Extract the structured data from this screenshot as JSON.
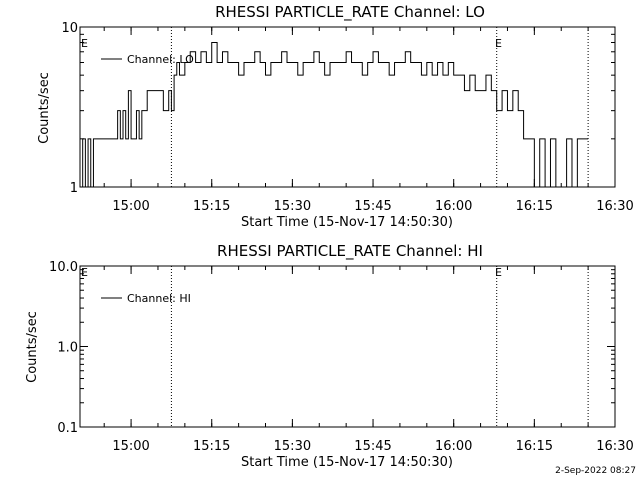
{
  "footer": {
    "date": "2-Sep-2022 08:27"
  },
  "chart_data": [
    {
      "type": "line",
      "title": "RHESSI PARTICLE_RATE Channel: LO",
      "xlabel": "Start Time (15-Nov-17 14:50:30)",
      "ylabel": "Counts/sec",
      "y_scale": "log",
      "ylim": [
        1,
        10
      ],
      "yticks": [
        "1",
        "10"
      ],
      "xlim": [
        "14:50:30",
        "16:30:00"
      ],
      "xticks": [
        "15:00",
        "15:15",
        "15:30",
        "15:45",
        "16:00",
        "16:15",
        "16:30"
      ],
      "grid": false,
      "legend_position": "top-left",
      "vlines": [
        "15:07:30",
        "16:08:00",
        "16:25:00"
      ],
      "markers": [
        "E",
        "E"
      ],
      "series": [
        {
          "name": "Channel: LO",
          "x": [
            "14:50:30",
            "14:51:00",
            "14:51:30",
            "14:52:00",
            "14:52:30",
            "14:53:00",
            "14:54:00",
            "14:55:00",
            "14:56:00",
            "14:57:00",
            "14:57:30",
            "14:58:00",
            "14:58:30",
            "14:59:00",
            "14:59:30",
            "15:00:00",
            "15:01:00",
            "15:01:30",
            "15:02:00",
            "15:02:30",
            "15:03:00",
            "15:04:00",
            "15:05:00",
            "15:06:00",
            "15:07:00",
            "15:07:30",
            "15:08:00",
            "15:08:30",
            "15:09:00",
            "15:10:00",
            "15:11:00",
            "15:12:00",
            "15:13:00",
            "15:14:00",
            "15:15:00",
            "15:16:00",
            "15:17:00",
            "15:18:00",
            "15:19:00",
            "15:20:00",
            "15:21:00",
            "15:22:00",
            "15:23:00",
            "15:24:00",
            "15:25:00",
            "15:26:00",
            "15:27:00",
            "15:28:00",
            "15:29:00",
            "15:30:00",
            "15:31:00",
            "15:32:00",
            "15:33:00",
            "15:34:00",
            "15:35:00",
            "15:36:00",
            "15:37:00",
            "15:38:00",
            "15:39:00",
            "15:40:00",
            "15:41:00",
            "15:42:00",
            "15:43:00",
            "15:44:00",
            "15:45:00",
            "15:46:00",
            "15:47:00",
            "15:48:00",
            "15:49:00",
            "15:50:00",
            "15:51:00",
            "15:52:00",
            "15:53:00",
            "15:54:00",
            "15:55:00",
            "15:56:00",
            "15:57:00",
            "15:58:00",
            "15:59:00",
            "16:00:00",
            "16:01:00",
            "16:02:00",
            "16:03:00",
            "16:04:00",
            "16:05:00",
            "16:06:00",
            "16:07:00",
            "16:08:00",
            "16:09:00",
            "16:10:00",
            "16:11:00",
            "16:12:00",
            "16:13:00",
            "16:14:00",
            "16:15:00",
            "16:16:00",
            "16:17:00",
            "16:18:00",
            "16:19:00",
            "16:20:00",
            "16:21:00",
            "16:22:00",
            "16:23:00",
            "16:24:00",
            "16:25:00"
          ],
          "values": [
            1,
            2,
            1,
            2,
            1,
            2,
            2,
            2,
            2,
            2,
            3,
            2,
            3,
            2,
            4,
            2,
            3,
            2,
            3,
            3,
            4,
            4,
            4,
            3,
            4,
            3,
            5,
            6,
            5,
            6,
            7,
            6,
            7,
            6,
            8,
            6,
            7,
            6,
            6,
            5,
            6,
            6,
            7,
            6,
            5,
            6,
            6,
            7,
            6,
            6,
            5,
            6,
            6,
            7,
            6,
            5,
            6,
            6,
            6,
            7,
            6,
            6,
            5,
            6,
            7,
            6,
            6,
            5,
            6,
            6,
            7,
            6,
            6,
            5,
            6,
            5,
            6,
            5,
            6,
            5,
            5,
            4,
            5,
            4,
            4,
            5,
            4,
            3,
            4,
            3,
            4,
            3,
            2,
            2,
            1,
            2,
            1,
            2,
            1,
            1,
            2,
            1,
            2,
            2,
            2
          ]
        }
      ]
    },
    {
      "type": "line",
      "title": "RHESSI PARTICLE_RATE Channel: HI",
      "xlabel": "Start Time (15-Nov-17 14:50:30)",
      "ylabel": "Counts/sec",
      "y_scale": "log",
      "ylim": [
        0.1,
        10
      ],
      "yticks": [
        "0.1",
        "1.0",
        "10.0"
      ],
      "xlim": [
        "14:50:30",
        "16:30:00"
      ],
      "xticks": [
        "15:00",
        "15:15",
        "15:30",
        "15:45",
        "16:00",
        "16:15",
        "16:30"
      ],
      "grid": false,
      "legend_position": "top-left",
      "vlines": [
        "15:07:30",
        "16:08:00",
        "16:25:00"
      ],
      "markers": [
        "E",
        "E"
      ],
      "series": [
        {
          "name": "Channel: HI",
          "x": [],
          "values": []
        }
      ]
    }
  ]
}
